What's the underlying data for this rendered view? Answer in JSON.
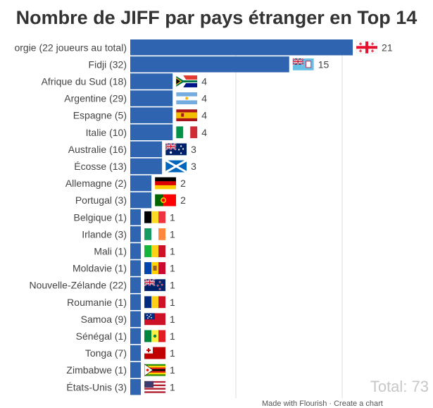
{
  "title": "Nombre de JIFF par pays étranger en Top 14",
  "total_label": "Total: 73",
  "footer_text": "Made with Flourish · Create a chart",
  "colors": {
    "bar": "#2f65b0",
    "grid": "#dcdcdc",
    "label": "#444444"
  },
  "chart_data": {
    "type": "bar",
    "orientation": "horizontal",
    "title": "Nombre de JIFF par pays étranger en Top 14",
    "grid": true,
    "categories": [
      "orgie (22 joueurs au total)",
      "Fidji (32)",
      "Afrique du Sud (18)",
      "Argentine (29)",
      "Espagne (5)",
      "Italie (10)",
      "Australie (16)",
      "Écosse (13)",
      "Allemagne (2)",
      "Portugal (3)",
      "Belgique (1)",
      "Irlande (3)",
      "Mali (1)",
      "Moldavie (1)",
      "Nouvelle-Zélande (22)",
      "Roumanie (1)",
      "Samoa (9)",
      "Sénégal (1)",
      "Tonga (7)",
      "Zimbabwe (1)",
      "États-Unis (3)"
    ],
    "values": [
      21,
      15,
      4,
      4,
      4,
      4,
      3,
      3,
      2,
      2,
      1,
      1,
      1,
      1,
      1,
      1,
      1,
      1,
      1,
      1,
      1
    ],
    "flags": [
      "georgia-flag",
      "fiji-flag",
      "south-africa-flag",
      "argentina-flag",
      "spain-flag",
      "italy-flag",
      "australia-flag",
      "scotland-flag",
      "germany-flag",
      "portugal-flag",
      "belgium-flag",
      "ireland-flag",
      "mali-flag",
      "moldova-flag",
      "new-zealand-flag",
      "romania-flag",
      "samoa-flag",
      "senegal-flag",
      "tonga-flag",
      "zimbabwe-flag",
      "usa-flag"
    ]
  }
}
